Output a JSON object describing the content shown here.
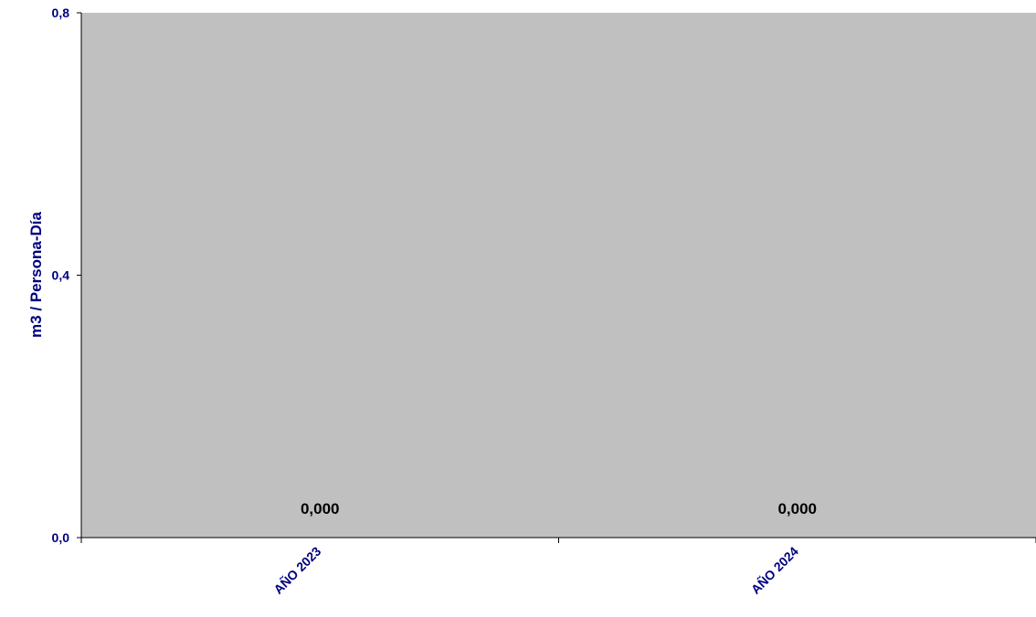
{
  "colors": {
    "plot_background": "#c0c0c0",
    "axis_text": "#000080",
    "axis_line": "#000000",
    "data_label": "#000000"
  },
  "chart_data": {
    "type": "bar",
    "categories": [
      "AÑO 2023",
      "AÑO 2024"
    ],
    "values": [
      0.0,
      0.0
    ],
    "data_labels": [
      "0,000",
      "0,000"
    ],
    "ylabel": "m3 / Persona-Día",
    "ylim": [
      0,
      0.8
    ],
    "yticks": [
      0.0,
      0.4,
      0.8
    ],
    "ytick_labels": [
      "0,0",
      "0,4",
      "0,8"
    ],
    "grid": false,
    "legend": "none"
  }
}
